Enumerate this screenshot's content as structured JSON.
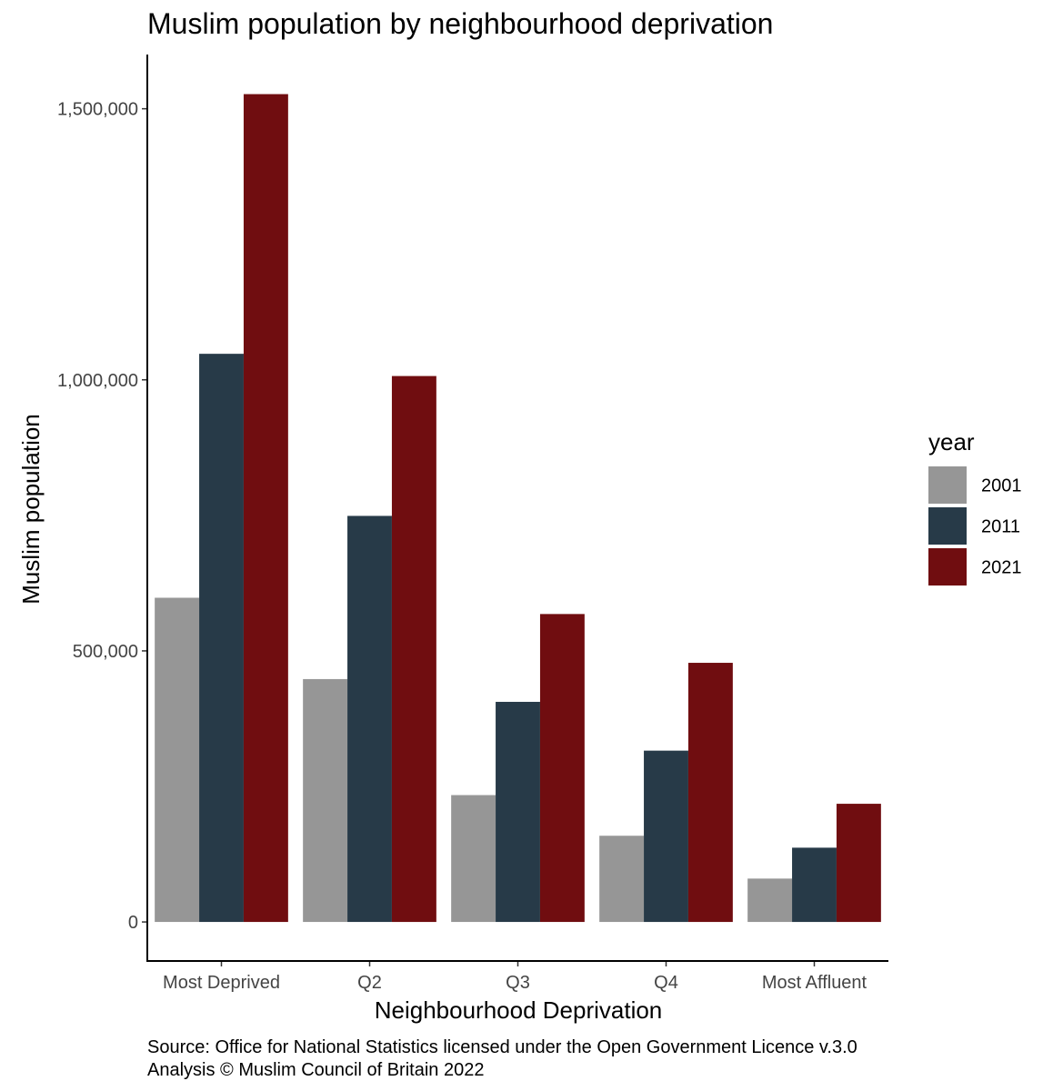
{
  "chart_data": {
    "type": "bar",
    "title": "Muslim population by neighbourhood deprivation",
    "xlabel": "Neighbourhood Deprivation",
    "ylabel": "Muslim population",
    "categories": [
      "Most Deprived",
      "Q2",
      "Q3",
      "Q4",
      "Most Affluent"
    ],
    "series": [
      {
        "name": "2001",
        "color": "#969696",
        "values": [
          598000,
          448000,
          234000,
          159000,
          80000
        ]
      },
      {
        "name": "2011",
        "color": "#273a48",
        "values": [
          1048000,
          749000,
          406000,
          316000,
          137000
        ]
      },
      {
        "name": "2021",
        "color": "#700d10",
        "values": [
          1527000,
          1007000,
          568000,
          478000,
          218000
        ]
      }
    ],
    "yticks": [
      0,
      500000,
      1000000,
      1500000
    ],
    "ytick_labels": [
      "0",
      "500,000",
      "1,000,000",
      "1,500,000"
    ],
    "ylim": [
      -72000,
      1600000
    ],
    "grid": false,
    "legend": {
      "title": "year",
      "position": "right"
    },
    "caption": [
      "Source: Office for National Statistics licensed under the Open Government Licence v.3.0",
      "Analysis © Muslim Council of Britain 2022"
    ]
  }
}
